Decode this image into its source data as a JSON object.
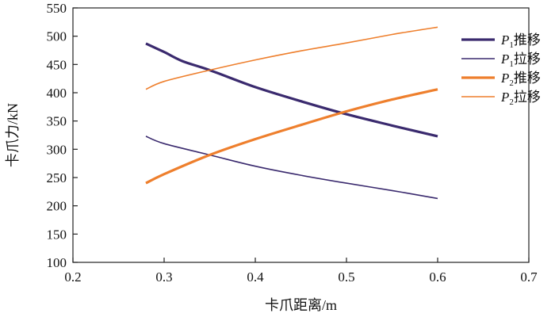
{
  "chart_data": {
    "type": "line",
    "xlabel": "卡爪距离/m",
    "ylabel": "卡爪力/kN",
    "xlim": [
      0.2,
      0.7
    ],
    "ylim": [
      100,
      550
    ],
    "xticks": [
      "0.2",
      "0.3",
      "0.4",
      "0.5",
      "0.6",
      "0.7"
    ],
    "yticks": [
      "100",
      "150",
      "200",
      "250",
      "300",
      "350",
      "400",
      "450",
      "500",
      "550"
    ],
    "grid": false,
    "legend_position": "top-right",
    "series": [
      {
        "name": "P1推移",
        "legend": {
          "italic": "P",
          "sub": "1",
          "text": "推移"
        },
        "color": "#3a2a6e",
        "weight": "thick",
        "x": [
          0.28,
          0.3,
          0.32,
          0.35,
          0.4,
          0.45,
          0.5,
          0.55,
          0.6
        ],
        "y": [
          487,
          472,
          456,
          440,
          410,
          385,
          362,
          342,
          323
        ]
      },
      {
        "name": "P1拉移",
        "legend": {
          "italic": "P",
          "sub": "1",
          "text": "拉移"
        },
        "color": "#3a2a6e",
        "weight": "thin",
        "x": [
          0.28,
          0.3,
          0.35,
          0.4,
          0.45,
          0.5,
          0.55,
          0.6
        ],
        "y": [
          323,
          310,
          290,
          270,
          254,
          240,
          227,
          213
        ]
      },
      {
        "name": "P2推移",
        "legend": {
          "italic": "P",
          "sub": "2",
          "text": "推移"
        },
        "color": "#ee7f2d",
        "weight": "thick",
        "x": [
          0.28,
          0.3,
          0.35,
          0.4,
          0.45,
          0.5,
          0.55,
          0.6
        ],
        "y": [
          240,
          256,
          290,
          318,
          343,
          367,
          388,
          406
        ]
      },
      {
        "name": "P2拉移",
        "legend": {
          "italic": "P",
          "sub": "2",
          "text": "拉移"
        },
        "color": "#ee7f2d",
        "weight": "thin",
        "x": [
          0.28,
          0.3,
          0.35,
          0.4,
          0.45,
          0.5,
          0.55,
          0.6
        ],
        "y": [
          406,
          420,
          440,
          458,
          474,
          488,
          503,
          516
        ]
      }
    ]
  }
}
